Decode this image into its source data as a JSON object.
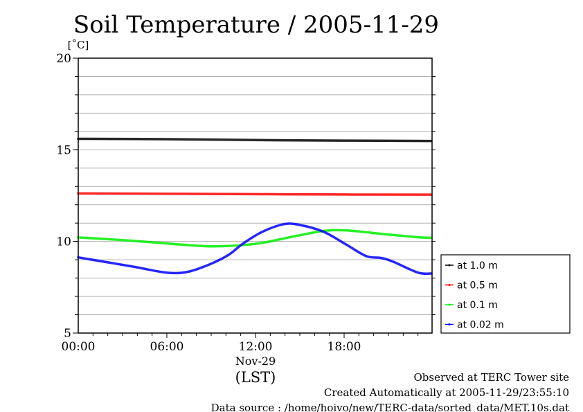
{
  "chart_data": {
    "type": "line",
    "title": "Soil Temperature / 2005-11-29",
    "ylabel": "[˚C]",
    "xlabel": "(LST)",
    "date_label": "Nov-29",
    "ylim": [
      5,
      20
    ],
    "xlim_hours": [
      0,
      24
    ],
    "y_ticks": [
      5,
      10,
      15,
      20
    ],
    "y_tick_labels": [
      "5",
      "10",
      "15",
      "20"
    ],
    "x_ticks_hours": [
      0,
      6,
      12,
      18
    ],
    "x_tick_labels": [
      "00:00",
      "06:00",
      "12:00",
      "18:00"
    ],
    "grid": true,
    "legend_position": "bottom-right-outside",
    "series": [
      {
        "name": "at 1.0 m",
        "color": "#000000",
        "x": [
          0,
          6,
          12,
          18,
          23.9
        ],
        "values": [
          15.6,
          15.58,
          15.53,
          15.5,
          15.48
        ]
      },
      {
        "name": "at 0.5 m",
        "color": "#ff0000",
        "x": [
          0,
          6,
          12,
          18,
          23.9
        ],
        "values": [
          12.62,
          12.6,
          12.58,
          12.56,
          12.55
        ]
      },
      {
        "name": "at 0.1 m",
        "color": "#00ee00",
        "x": [
          0,
          3.6,
          7.8,
          9.8,
          12.2,
          14.5,
          16.6,
          18.2,
          20.7,
          23.0,
          23.9
        ],
        "values": [
          10.22,
          10.04,
          9.78,
          9.74,
          9.89,
          10.26,
          10.57,
          10.6,
          10.4,
          10.23,
          10.2
        ]
      },
      {
        "name": "at 0.02 m",
        "color": "#0000ff",
        "x": [
          0,
          3.6,
          5.95,
          7.4,
          8.9,
          10.2,
          11.1,
          12.4,
          13.9,
          15.0,
          16.6,
          18.1,
          19.5,
          20.5,
          21.3,
          23.0,
          23.9
        ],
        "values": [
          9.13,
          8.64,
          8.3,
          8.34,
          8.75,
          9.28,
          9.85,
          10.5,
          10.94,
          10.9,
          10.53,
          9.85,
          9.2,
          9.1,
          8.9,
          8.3,
          8.25
        ]
      }
    ],
    "footer": [
      "Observed at TERC Tower site",
      "Created Automatically at 2005-11-29/23:55:10",
      "Data source : /home/hoivo/new/TERC-data/sorted_data/MET.10s.dat"
    ]
  }
}
